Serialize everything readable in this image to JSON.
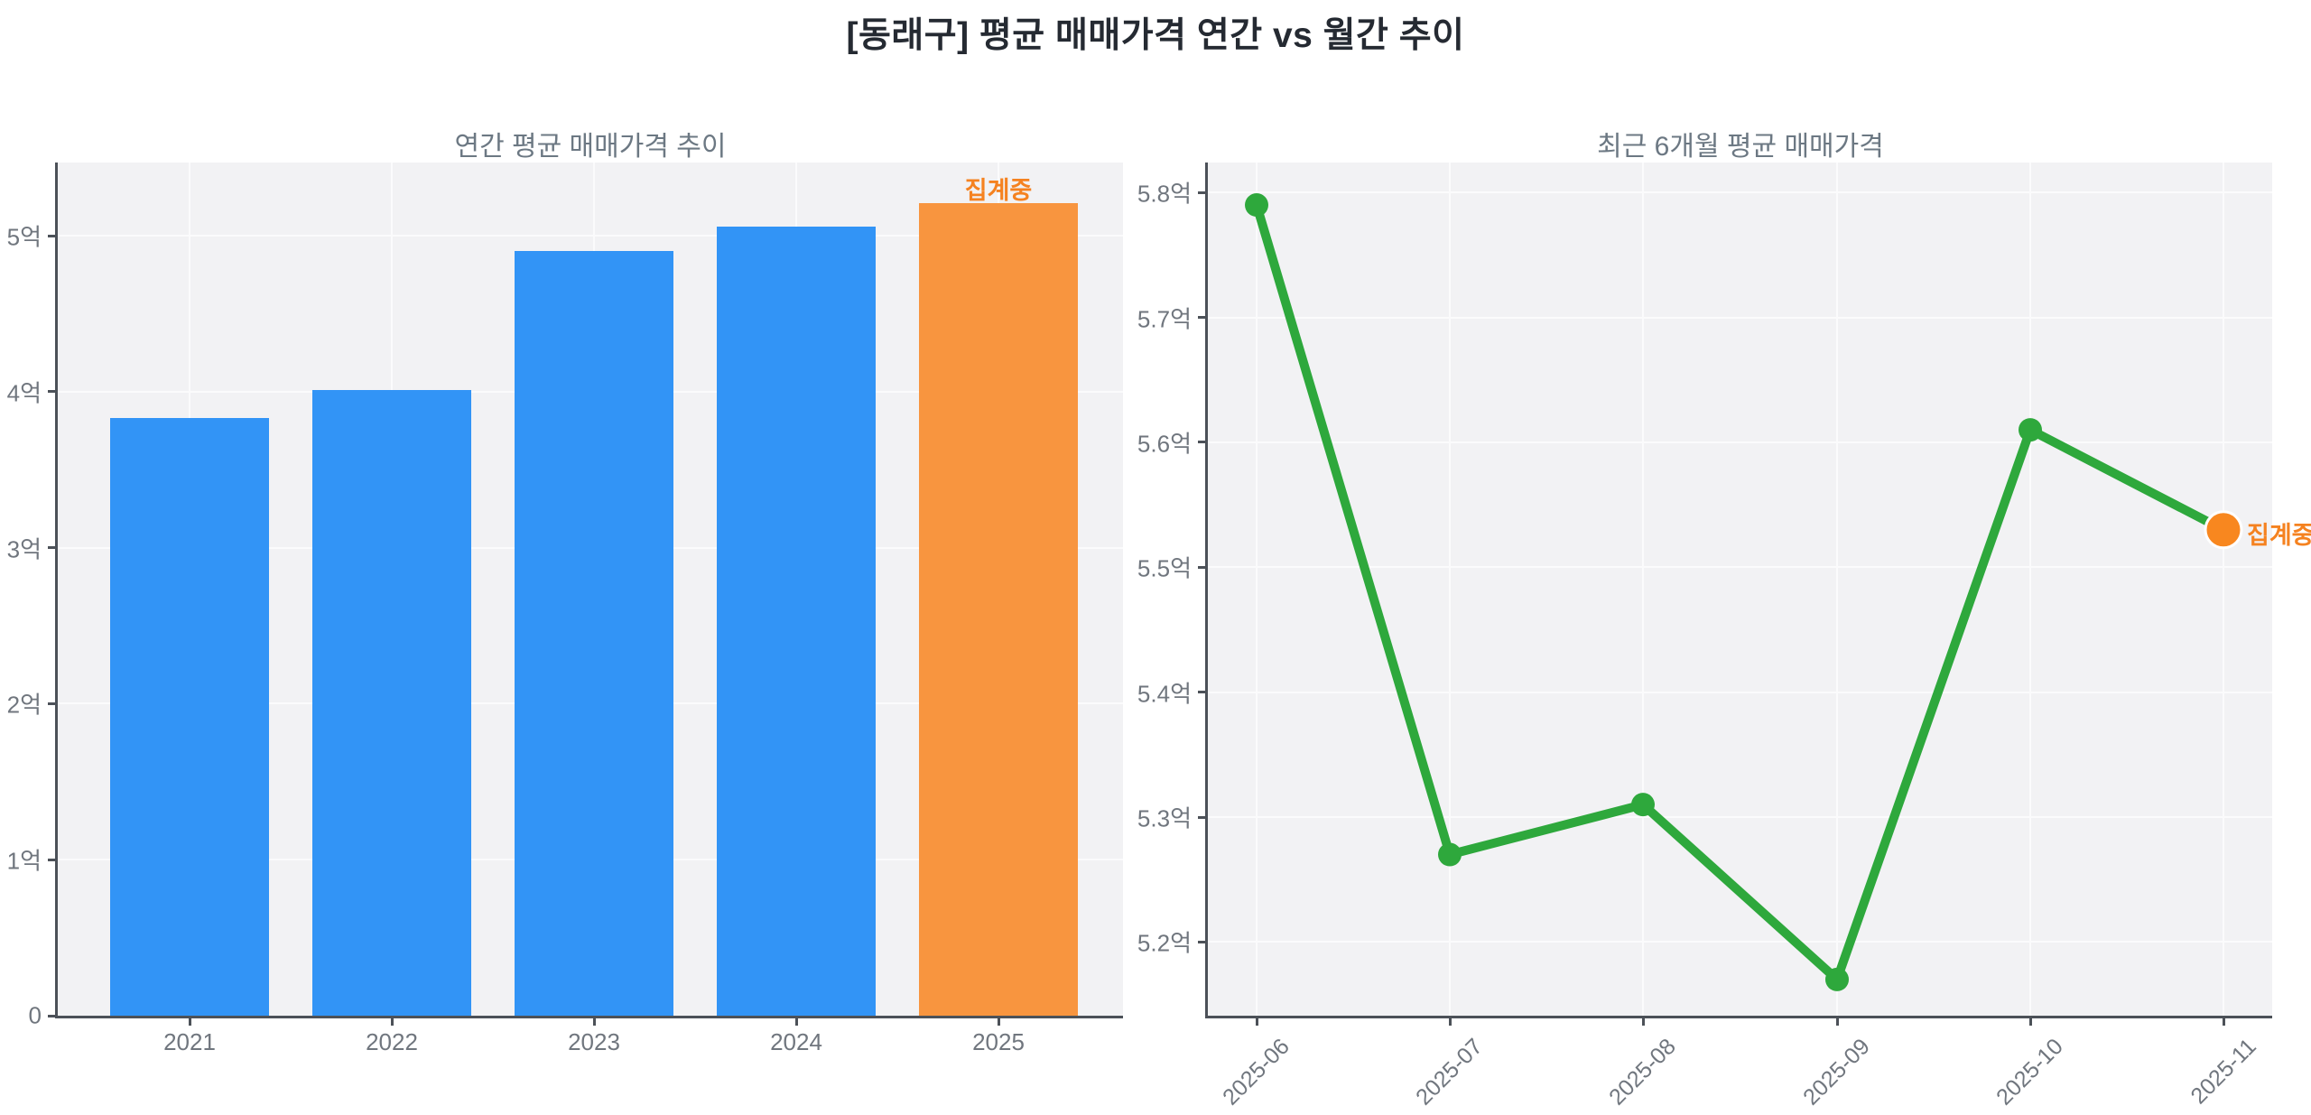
{
  "page_title": "[동래구] 평균 매매가격 연간 vs 월간 추이",
  "colors": {
    "page_background": "#FFFFFF",
    "plot_background": "#F2F2F4",
    "gridline": "#FBFBFC",
    "axis_spine": "#4C5158",
    "tick_label": "#70767E",
    "subplot_title": "#6C7883",
    "main_title": "#252A32",
    "bar_blue": "#3294F6",
    "bar_orange": "#F8953F",
    "line_green": "#2EA83C",
    "marker_orange": "#F8871F",
    "annotation_orange": "#F58220"
  },
  "chart_data": [
    {
      "type": "bar",
      "title": "연간 평균 매매가격 추이",
      "unit": "억",
      "categories": [
        "2021",
        "2022",
        "2023",
        "2024",
        "2025"
      ],
      "values": [
        3.83,
        4.01,
        4.9,
        5.06,
        5.21
      ],
      "ylabel_ticks": [
        "0",
        "1억",
        "2억",
        "3억",
        "4억",
        "5억"
      ],
      "ytick_values": [
        0,
        1,
        2,
        3,
        4,
        5
      ],
      "ylim": [
        0,
        5.47
      ],
      "grid": true,
      "legend": "none",
      "bar_color": "#3294F6",
      "highlight_index": 4,
      "highlight_color": "#F8953F",
      "annotation": "집계중"
    },
    {
      "type": "line",
      "title": "최근 6개월 평균 매매가격",
      "unit": "억",
      "categories": [
        "2025-06",
        "2025-07",
        "2025-08",
        "2025-09",
        "2025-10",
        "2025-11"
      ],
      "values": [
        5.79,
        5.27,
        5.31,
        5.17,
        5.61,
        5.53
      ],
      "ylabel_ticks": [
        "5.2억",
        "5.3억",
        "5.4억",
        "5.5억",
        "5.6억",
        "5.7억",
        "5.8억"
      ],
      "ytick_values": [
        5.2,
        5.3,
        5.4,
        5.5,
        5.6,
        5.7,
        5.8
      ],
      "ylim": [
        5.141,
        5.824
      ],
      "grid": true,
      "legend": "none",
      "line_color": "#2EA83C",
      "highlight_index": 5,
      "highlight_color": "#F8871F",
      "annotation": "집계중"
    }
  ]
}
